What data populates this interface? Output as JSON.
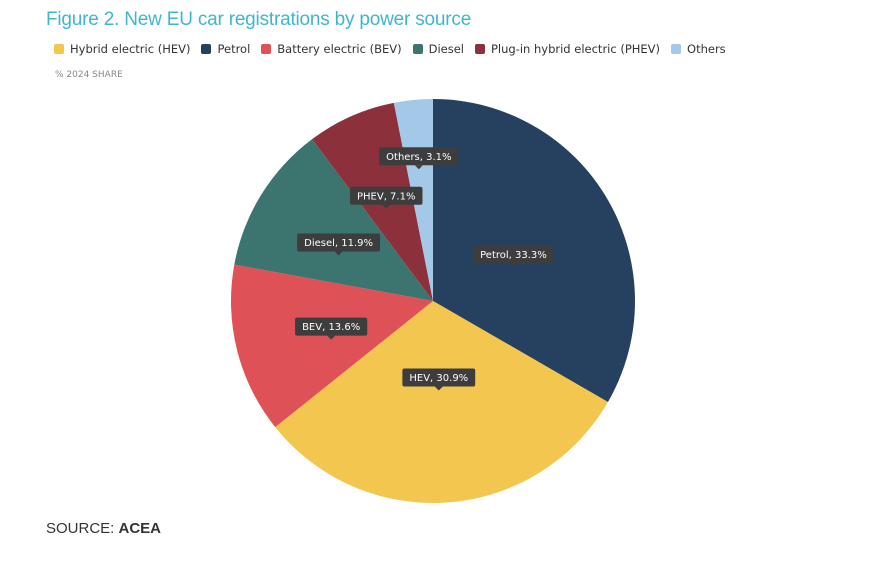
{
  "title": "Figure 2. New EU car registrations by power source",
  "subtitle": "% 2024 SHARE",
  "source": {
    "prefix": "SOURCE: ",
    "name": "ACEA"
  },
  "legend": [
    {
      "label": "Hybrid electric (HEV)",
      "color": "#f2c64f"
    },
    {
      "label": "Petrol",
      "color": "#26415f"
    },
    {
      "label": "Battery electric (BEV)",
      "color": "#de5156"
    },
    {
      "label": "Diesel",
      "color": "#3c7470"
    },
    {
      "label": "Plug-in hybrid electric (PHEV)",
      "color": "#8c313c"
    },
    {
      "label": "Others",
      "color": "#a3c8e8"
    }
  ],
  "chart_data": {
    "type": "pie",
    "title": "Figure 2. New EU car registrations by power source",
    "subtitle": "% 2024 SHARE",
    "unit": "%",
    "start": "12 o'clock",
    "direction": "clockwise",
    "slices": [
      {
        "name": "Petrol",
        "value": 33.3,
        "color": "#26415f",
        "label": "Petrol, 33.3%"
      },
      {
        "name": "HEV",
        "value": 30.9,
        "color": "#f2c64f",
        "label": "HEV, 30.9%"
      },
      {
        "name": "BEV",
        "value": 13.6,
        "color": "#de5156",
        "label": "BEV, 13.6%"
      },
      {
        "name": "Diesel",
        "value": 11.9,
        "color": "#3c7470",
        "label": "Diesel, 11.9%"
      },
      {
        "name": "PHEV",
        "value": 7.1,
        "color": "#8c313c",
        "label": "PHEV, 7.1%"
      },
      {
        "name": "Others",
        "value": 3.1,
        "color": "#a3c8e8",
        "label": "Others, 3.1%"
      }
    ],
    "data_label_style": {
      "background": "#3d3d3d",
      "text_color": "#ffffff"
    }
  }
}
